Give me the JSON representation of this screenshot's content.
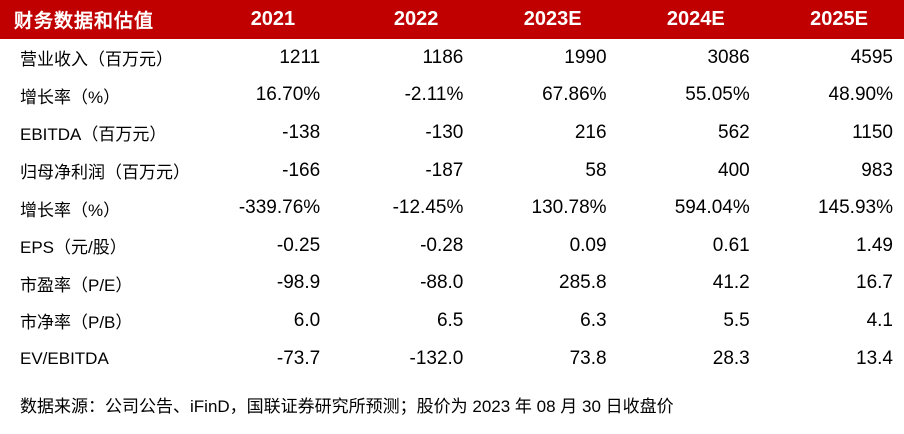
{
  "table": {
    "title": "财务数据和估值",
    "columns": [
      "2021",
      "2022",
      "2023E",
      "2024E",
      "2025E"
    ],
    "rows": [
      {
        "label": "营业收入（百万元）",
        "values": [
          "1211",
          "1186",
          "1990",
          "3086",
          "4595"
        ]
      },
      {
        "label": "增长率（%）",
        "values": [
          "16.70%",
          "-2.11%",
          "67.86%",
          "55.05%",
          "48.90%"
        ]
      },
      {
        "label": "EBITDA（百万元）",
        "values": [
          "-138",
          "-130",
          "216",
          "562",
          "1150"
        ]
      },
      {
        "label": "归母净利润（百万元）",
        "values": [
          "-166",
          "-187",
          "58",
          "400",
          "983"
        ]
      },
      {
        "label": "增长率（%）",
        "values": [
          "-339.76%",
          "-12.45%",
          "130.78%",
          "594.04%",
          "145.93%"
        ]
      },
      {
        "label": "EPS（元/股）",
        "values": [
          "-0.25",
          "-0.28",
          "0.09",
          "0.61",
          "1.49"
        ]
      },
      {
        "label": "市盈率（P/E）",
        "values": [
          "-98.9",
          "-88.0",
          "285.8",
          "41.2",
          "16.7"
        ]
      },
      {
        "label": "市净率（P/B）",
        "values": [
          "6.0",
          "6.5",
          "6.3",
          "5.5",
          "4.1"
        ]
      },
      {
        "label": "EV/EBITDA",
        "values": [
          "-73.7",
          "-132.0",
          "73.8",
          "28.3",
          "13.4"
        ]
      }
    ]
  },
  "footer": {
    "source_note": "数据来源：公司公告、iFinD，国联证券研究所预测；股价为 2023 年 08 月 30 日收盘价"
  },
  "colors": {
    "header_bg": "#c00000",
    "header_text": "#ffffff",
    "body_text": "#000000"
  }
}
